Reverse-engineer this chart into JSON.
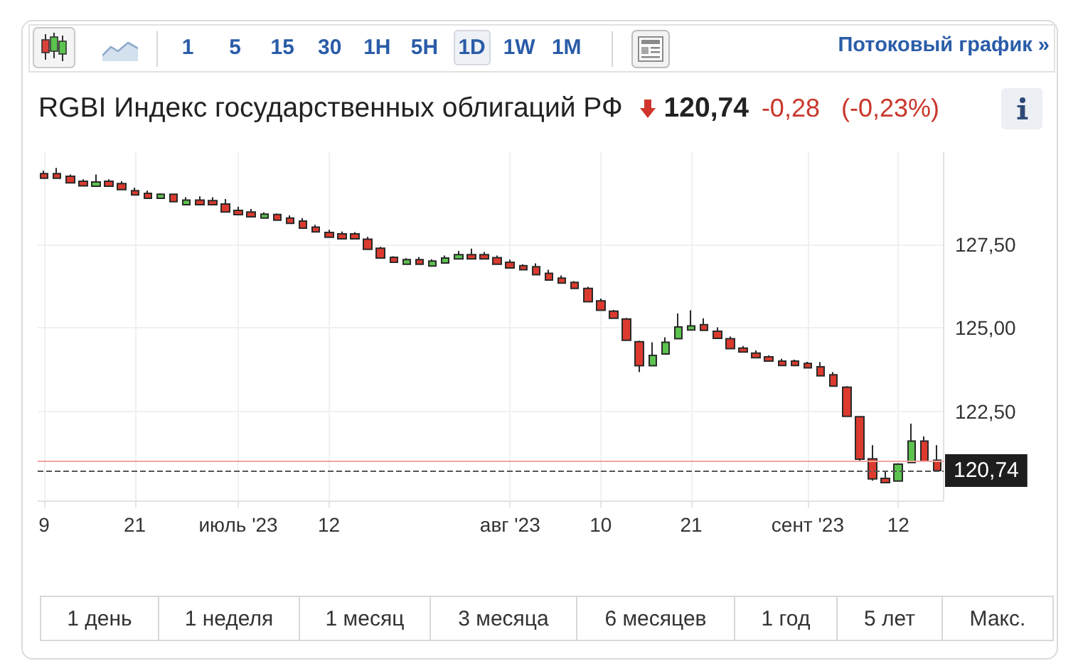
{
  "chart_data": {
    "type": "candlestick",
    "title": "RGBI Индекс государственных облигаций РФ",
    "categories": [
      "9",
      null,
      null,
      null,
      null,
      null,
      null,
      "21",
      null,
      null,
      null,
      null,
      null,
      null,
      null,
      "июль '23",
      null,
      null,
      null,
      null,
      null,
      null,
      "12",
      null,
      null,
      null,
      null,
      null,
      null,
      null,
      null,
      null,
      null,
      null,
      null,
      null,
      "авг '23",
      null,
      null,
      null,
      null,
      null,
      null,
      "10",
      null,
      null,
      null,
      null,
      null,
      null,
      "21",
      null,
      null,
      null,
      null,
      null,
      null,
      null,
      null,
      "сент '23",
      null,
      null,
      null,
      null,
      null,
      null,
      "12",
      null,
      null,
      null
    ],
    "ohlc": [
      [
        129.61,
        129.7,
        129.45,
        129.47
      ],
      [
        129.61,
        129.78,
        129.45,
        129.47
      ],
      [
        129.53,
        129.58,
        129.31,
        129.33
      ],
      [
        129.38,
        129.44,
        129.22,
        129.24
      ],
      [
        129.23,
        129.58,
        129.21,
        129.36
      ],
      [
        129.38,
        129.44,
        129.21,
        129.23
      ],
      [
        129.31,
        129.38,
        129.11,
        129.13
      ],
      [
        129.1,
        129.19,
        128.95,
        128.97
      ],
      [
        129.02,
        129.1,
        128.85,
        128.87
      ],
      [
        128.87,
        129.02,
        128.85,
        128.99
      ],
      [
        128.99,
        129.01,
        128.75,
        128.77
      ],
      [
        128.68,
        128.9,
        128.66,
        128.82
      ],
      [
        128.82,
        128.93,
        128.66,
        128.68
      ],
      [
        128.8,
        128.9,
        128.66,
        128.68
      ],
      [
        128.7,
        128.85,
        128.44,
        128.46
      ],
      [
        128.51,
        128.62,
        128.36,
        128.38
      ],
      [
        128.46,
        128.55,
        128.3,
        128.32
      ],
      [
        128.28,
        128.45,
        128.26,
        128.4
      ],
      [
        128.39,
        128.42,
        128.2,
        128.22
      ],
      [
        128.28,
        128.36,
        128.1,
        128.12
      ],
      [
        128.19,
        128.28,
        127.96,
        127.98
      ],
      [
        128.01,
        128.08,
        127.85,
        127.87
      ],
      [
        127.85,
        127.93,
        127.69,
        127.71
      ],
      [
        127.81,
        127.88,
        127.64,
        127.66
      ],
      [
        127.81,
        127.86,
        127.64,
        127.66
      ],
      [
        127.65,
        127.72,
        127.33,
        127.35
      ],
      [
        127.38,
        127.42,
        127.07,
        127.09
      ],
      [
        127.11,
        127.14,
        126.94,
        126.96
      ],
      [
        126.9,
        127.08,
        126.88,
        127.04
      ],
      [
        127.04,
        127.12,
        126.88,
        126.9
      ],
      [
        126.85,
        127.05,
        126.83,
        127.0
      ],
      [
        126.94,
        127.16,
        126.92,
        127.09
      ],
      [
        127.06,
        127.3,
        127.04,
        127.19
      ],
      [
        127.19,
        127.37,
        127.04,
        127.06
      ],
      [
        127.19,
        127.27,
        127.04,
        127.06
      ],
      [
        127.1,
        127.16,
        126.88,
        126.9
      ],
      [
        126.96,
        127.04,
        126.77,
        126.79
      ],
      [
        126.86,
        126.9,
        126.72,
        126.74
      ],
      [
        126.83,
        126.93,
        126.57,
        126.59
      ],
      [
        126.63,
        126.74,
        126.41,
        126.43
      ],
      [
        126.49,
        126.57,
        126.32,
        126.34
      ],
      [
        126.36,
        126.4,
        126.16,
        126.18
      ],
      [
        126.18,
        126.23,
        125.76,
        125.78
      ],
      [
        125.81,
        125.88,
        125.51,
        125.53
      ],
      [
        125.5,
        125.54,
        125.27,
        125.29
      ],
      [
        125.27,
        125.3,
        124.61,
        124.63
      ],
      [
        124.59,
        124.62,
        123.68,
        123.87
      ],
      [
        123.87,
        124.57,
        123.85,
        124.18
      ],
      [
        124.22,
        124.72,
        124.2,
        124.57
      ],
      [
        124.68,
        125.43,
        124.66,
        125.03
      ],
      [
        124.94,
        125.53,
        124.92,
        125.06
      ],
      [
        125.1,
        125.29,
        124.91,
        124.93
      ],
      [
        124.9,
        125.02,
        124.67,
        124.69
      ],
      [
        124.68,
        124.74,
        124.36,
        124.38
      ],
      [
        124.4,
        124.46,
        124.26,
        124.28
      ],
      [
        124.25,
        124.33,
        124.09,
        124.11
      ],
      [
        124.14,
        124.18,
        123.99,
        124.01
      ],
      [
        124.01,
        124.08,
        123.86,
        123.88
      ],
      [
        124.01,
        124.05,
        123.86,
        123.88
      ],
      [
        123.94,
        123.99,
        123.79,
        123.81
      ],
      [
        123.84,
        123.98,
        123.55,
        123.57
      ],
      [
        123.6,
        123.68,
        123.24,
        123.26
      ],
      [
        123.23,
        123.26,
        122.34,
        122.36
      ],
      [
        122.35,
        122.37,
        121.0,
        121.08
      ],
      [
        121.09,
        121.5,
        120.44,
        120.49
      ],
      [
        120.51,
        120.74,
        120.36,
        120.38
      ],
      [
        120.43,
        120.96,
        120.41,
        120.93
      ],
      [
        120.98,
        122.14,
        120.96,
        121.62
      ],
      [
        121.62,
        121.76,
        121.0,
        121.02
      ],
      [
        121.05,
        121.5,
        120.72,
        120.74
      ]
    ],
    "colors": [
      "#dc3a2e",
      "#dc3a2e",
      "#dc3a2e",
      "#dc3a2e",
      "#5cc34e",
      "#dc3a2e",
      "#dc3a2e",
      "#dc3a2e",
      "#dc3a2e",
      "#5cc34e",
      "#dc3a2e",
      "#5cc34e",
      "#dc3a2e",
      "#dc3a2e",
      "#dc3a2e",
      "#dc3a2e",
      "#dc3a2e",
      "#5cc34e",
      "#dc3a2e",
      "#dc3a2e",
      "#dc3a2e",
      "#dc3a2e",
      "#dc3a2e",
      "#dc3a2e",
      "#dc3a2e",
      "#dc3a2e",
      "#dc3a2e",
      "#dc3a2e",
      "#5cc34e",
      "#dc3a2e",
      "#5cc34e",
      "#5cc34e",
      "#5cc34e",
      "#dc3a2e",
      "#dc3a2e",
      "#dc3a2e",
      "#dc3a2e",
      "#dc3a2e",
      "#dc3a2e",
      "#dc3a2e",
      "#dc3a2e",
      "#dc3a2e",
      "#dc3a2e",
      "#dc3a2e",
      "#dc3a2e",
      "#dc3a2e",
      "#dc3a2e",
      "#5cc34e",
      "#5cc34e",
      "#5cc34e",
      "#5cc34e",
      "#dc3a2e",
      "#dc3a2e",
      "#dc3a2e",
      "#dc3a2e",
      "#dc3a2e",
      "#dc3a2e",
      "#dc3a2e",
      "#dc3a2e",
      "#dc3a2e",
      "#dc3a2e",
      "#dc3a2e",
      "#dc3a2e",
      "#dc3a2e",
      "#dc3a2e",
      "#dc3a2e",
      "#5cc34e",
      "#5cc34e",
      "#dc3a2e",
      "#dc3a2e"
    ],
    "ylim": [
      119.85,
      130.25
    ],
    "yticks": [
      {
        "value": 122.5,
        "label": "122,50"
      },
      {
        "value": 125,
        "label": "125,00"
      },
      {
        "value": 127.5,
        "label": "127,50"
      }
    ],
    "grid": true,
    "ref_lines": [
      {
        "axis": "y",
        "value": 121.02,
        "color": "#f2a49c",
        "line_style": "solid"
      },
      {
        "axis": "y",
        "value": 120.74,
        "label": "120,74",
        "color": "#555555",
        "line_style": "dashed"
      }
    ],
    "annotations": [
      "1",
      "5",
      "15",
      "30",
      "1H",
      "5H",
      "1D",
      "1W",
      "1M",
      "Потоковый график »",
      "120,74",
      "-0,28",
      "(-0,23%)",
      "1 день",
      "1 неделя",
      "1 месяц",
      "3 месяца",
      "6 месяцев",
      "1 год",
      "5 лет",
      "Макс."
    ]
  }
}
